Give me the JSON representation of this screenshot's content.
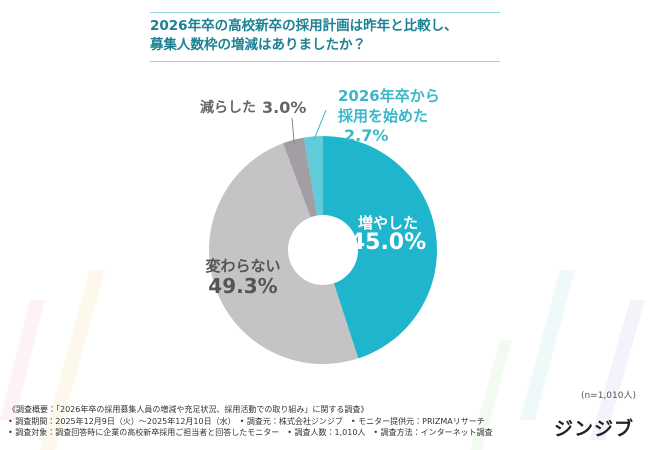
{
  "chart_data": {
    "type": "donut",
    "title": "2026年卒の高校新卒の採用計画は昨年と比較し、\n募集人数枠の増減はありましたか？",
    "categories": [
      "増やした",
      "変わらない",
      "減らした",
      "2026年卒から\n採用を始めた"
    ],
    "values": [
      45.0,
      49.3,
      3.0,
      2.7
    ],
    "value_labels": [
      "45.0%",
      "49.3%",
      "3.0%",
      "2.7%"
    ],
    "colors": [
      "#1fb5cc",
      "#c6c3c7",
      "#a29ea3",
      "#62cbdb"
    ],
    "note": "(n=1,010人)",
    "footnotes": [
      "《調査概要：「2026年卒の採用募集人員の増減や充足状況、採用活動での取り組み」に関する調査》",
      "• 調査期間：2025年12月9日（火）～2025年12月10日（水）　• 調査元：株式会社ジンジブ　• モニター提供元：PRIZMAリサーチ",
      "• 調査対象：調査回答時に企業の高校新卒採用ご担当者と回答したモニター　• 調査人数：1,010人　• 調査方法：インターネット調査"
    ],
    "logo": "ジンジブ"
  }
}
